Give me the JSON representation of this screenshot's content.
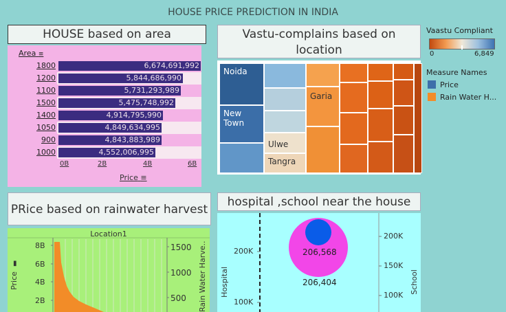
{
  "dashboard_title": "HOUSE PRICE PREDICTION IN INDIA",
  "house": {
    "title": "HOUSE based on area",
    "header": "Area",
    "rows": [
      {
        "area": "1800",
        "price": "6,674,691,992",
        "value": 6674691992
      },
      {
        "area": "1200",
        "price": "5,844,686,990",
        "value": 5844686990
      },
      {
        "area": "1100",
        "price": "5,731,293,989",
        "value": 5731293989
      },
      {
        "area": "1500",
        "price": "5,475,748,992",
        "value": 5475748992
      },
      {
        "area": "1400",
        "price": "4,914,795,990",
        "value": 4914795990
      },
      {
        "area": "1050",
        "price": "4,849,634,995",
        "value": 4849634995
      },
      {
        "area": "900",
        "price": "4,843,883,989",
        "value": 4843883989
      },
      {
        "area": "1000",
        "price": "4,552,006,995",
        "value": 4552006995
      }
    ],
    "axis_ticks": [
      "0B",
      "2B",
      "4B",
      "6B"
    ],
    "axis_label": "Price",
    "bar_color": "#3b2c80"
  },
  "vastu": {
    "title": "Vastu-complains based on location",
    "labels": {
      "noida": "Noida",
      "newtown": "New Town",
      "garia": "Garia",
      "ulwe": "Ulwe",
      "tangra": "Tangra"
    }
  },
  "legend": {
    "vastu_title": "Vaastu Compliant",
    "min": "0",
    "max": "6,849",
    "measure_title": "Measure Names",
    "items": [
      {
        "label": "Price",
        "color": "#3d6faa"
      },
      {
        "label": "Rain Water H...",
        "color": "#f28c28"
      }
    ]
  },
  "rain": {
    "title": "PRice based on rainwater harvest",
    "header": "Location1",
    "y_left_label": "Price",
    "y_left_ticks": [
      "8B",
      "6B",
      "4B",
      "2B"
    ],
    "y_right_label": "Rain Water Harve..",
    "y_right_ticks": [
      "1500",
      "1000",
      "500"
    ]
  },
  "hospital": {
    "title": "hospital ,school near the house",
    "y_left_label": "Hospital",
    "y_left_ticks": [
      "200K",
      "100K"
    ],
    "y_right_label": "School",
    "y_right_ticks": [
      "200K",
      "150K",
      "100K"
    ],
    "big_value": "206,568",
    "small_value": "206,404"
  },
  "chart_data": [
    {
      "type": "bar",
      "title": "HOUSE based on area",
      "categories": [
        "1800",
        "1200",
        "1100",
        "1500",
        "1400",
        "1050",
        "900",
        "1000"
      ],
      "values": [
        6674691992,
        5844686990,
        5731293989,
        5475748992,
        4914795990,
        4849634995,
        4843883989,
        4552006995
      ],
      "xlabel": "Price",
      "ylabel": "Area",
      "xlim": [
        0,
        7000000000
      ]
    }
  ]
}
